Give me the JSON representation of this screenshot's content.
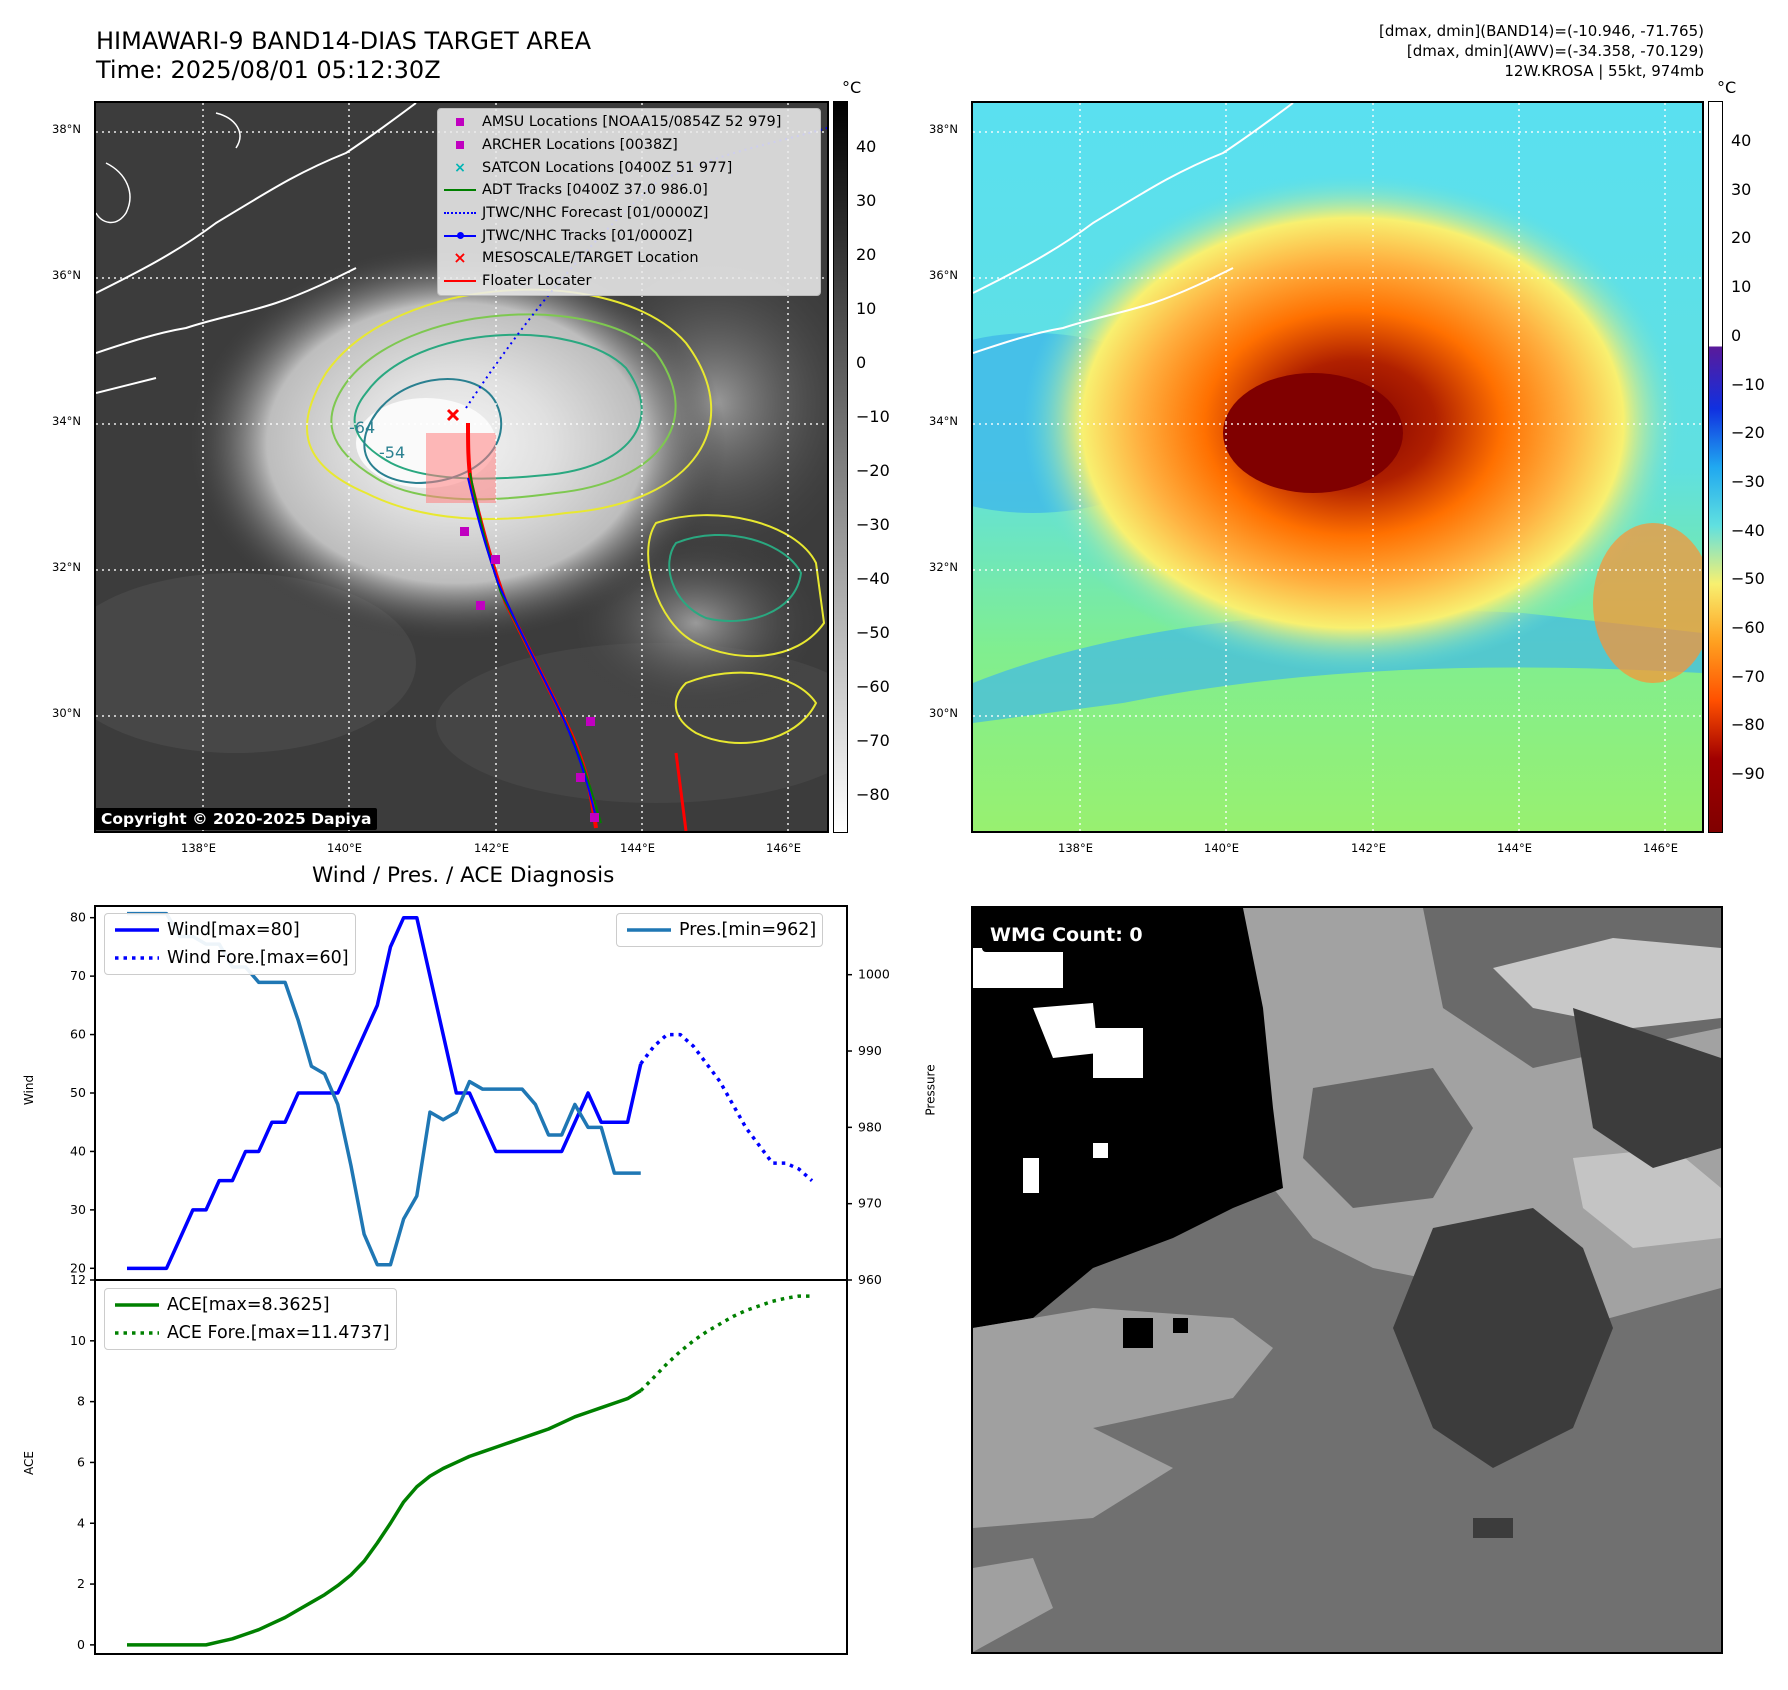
{
  "header": {
    "title_line1": "HIMAWARI-9 BAND14-DIAS TARGET AREA",
    "title_line2": "Time: 2025/08/01 05:12:30Z",
    "info_line1": "[dmax, dmin](BAND14)=(-10.946, -71.765)",
    "info_line2": "[dmax, dmin](AWV)=(-34.358, -70.129)",
    "info_line3": "12W.KROSA | 55kt, 974mb"
  },
  "map_axes": {
    "lon_ticks": [
      "138°E",
      "140°E",
      "142°E",
      "144°E",
      "146°E"
    ],
    "lat_ticks": [
      "38°N",
      "36°N",
      "34°N",
      "32°N",
      "30°N"
    ]
  },
  "ir_panel": {
    "copyright": "Copyright © 2020-2025 Dapiya",
    "contour_labels": [
      "-64",
      "-54"
    ],
    "legend": [
      {
        "label": "AMSU Locations [NOAA15/0854Z 52 979]",
        "symbol": "square",
        "color": "#c000c0"
      },
      {
        "label": "ARCHER Locations [0038Z]",
        "symbol": "square",
        "color": "#c000c0"
      },
      {
        "label": "SATCON Locations [0400Z 51 977]",
        "symbol": "x",
        "color": "#00b4b4"
      },
      {
        "label": "ADT Tracks [0400Z 37.0 986.0]",
        "symbol": "line",
        "color": "#008000"
      },
      {
        "label": "JTWC/NHC Forecast [01/0000Z]",
        "symbol": "dotted",
        "color": "#0000ff"
      },
      {
        "label": "JTWC/NHC Tracks [01/0000Z]",
        "symbol": "line-dot",
        "color": "#0000ff"
      },
      {
        "label": "MESOSCALE/TARGET Location",
        "symbol": "x",
        "color": "#ff0000"
      },
      {
        "label": "Floater Locater",
        "symbol": "line",
        "color": "#ff0000"
      }
    ],
    "colorbar_unit": "°C",
    "colorbar_ticks": [
      "40",
      "30",
      "20",
      "10",
      "0",
      "−10",
      "−20",
      "−30",
      "−40",
      "−50",
      "−60",
      "−70",
      "−80"
    ]
  },
  "wv_panel": {
    "colorbar_unit": "°C",
    "colorbar_ticks": [
      "40",
      "30",
      "20",
      "10",
      "0",
      "−10",
      "−20",
      "−30",
      "−40",
      "−50",
      "−60",
      "−70",
      "−80",
      "−90"
    ]
  },
  "wmg_panel": {
    "label": "WMG Count: 0"
  },
  "chart_data": [
    {
      "type": "line",
      "title": "Wind / Pres. / ACE Diagnosis",
      "ylabel": "Wind",
      "ylabel_right": "Pressure",
      "ylim": [
        18,
        82
      ],
      "ylim_right": [
        960,
        1009
      ],
      "yticks": [
        20,
        30,
        40,
        50,
        60,
        70,
        80
      ],
      "yticks_right": [
        960,
        970,
        980,
        990,
        1000
      ],
      "x": [
        0,
        1,
        2,
        3,
        4,
        5,
        6,
        7,
        8,
        9,
        10,
        11,
        12,
        13,
        14,
        15,
        16,
        17,
        18,
        19,
        20,
        21,
        22,
        23,
        24,
        25,
        26,
        27,
        28,
        29,
        30,
        31,
        32,
        33,
        34,
        35,
        36,
        37,
        38,
        39,
        40,
        41,
        42,
        43,
        44,
        45,
        46,
        47,
        48,
        49,
        50,
        51,
        52,
        53,
        54,
        55,
        56,
        57,
        58,
        59
      ],
      "series": [
        {
          "name": "Wind[max=80]",
          "color": "#0000ff",
          "style": "solid",
          "x": [
            0,
            1,
            2,
            3,
            4,
            5,
            6,
            7,
            8,
            9,
            10,
            11,
            12,
            13,
            14,
            15,
            16,
            17,
            18,
            19,
            20,
            21,
            22,
            23,
            24,
            25,
            26,
            27,
            28,
            29,
            30,
            31,
            32,
            33,
            34,
            35,
            36,
            37,
            38,
            39
          ],
          "values": [
            20,
            20,
            20,
            20,
            25,
            30,
            30,
            35,
            35,
            40,
            40,
            45,
            45,
            50,
            50,
            50,
            50,
            55,
            60,
            65,
            75,
            80,
            80,
            70,
            60,
            50,
            50,
            45,
            40,
            40,
            40,
            40,
            40,
            40,
            45,
            50,
            45,
            45,
            45,
            55
          ]
        },
        {
          "name": "Wind Fore.[max=60]",
          "color": "#0000ff",
          "style": "dotted",
          "x": [
            39,
            40,
            41,
            42,
            43,
            44,
            45,
            46,
            47,
            48,
            49,
            50,
            51,
            52
          ],
          "values": [
            55,
            58,
            60,
            60,
            58,
            55,
            52,
            48,
            44,
            41,
            38,
            38,
            37,
            35
          ]
        },
        {
          "name": "Pres.[min=962]",
          "color": "#1f77b4",
          "style": "solid",
          "axis": "right",
          "x": [
            0,
            1,
            2,
            3,
            4,
            5,
            6,
            7,
            8,
            9,
            10,
            11,
            12,
            13,
            14,
            15,
            16,
            17,
            18,
            19,
            20,
            21,
            22,
            23,
            24,
            25,
            26,
            27,
            28,
            29,
            30,
            31,
            32,
            33,
            34,
            35,
            36,
            37,
            38,
            39
          ],
          "values": [
            1008,
            1008,
            1008,
            1008,
            1005,
            1005,
            1004,
            1004,
            1001,
            1001,
            999,
            999,
            999,
            994,
            988,
            987,
            983,
            975,
            966,
            962,
            962,
            968,
            971,
            982,
            981,
            982,
            986,
            985,
            985,
            985,
            985,
            983,
            979,
            979,
            983,
            980,
            980,
            974,
            974,
            974
          ]
        }
      ]
    },
    {
      "type": "line",
      "ylabel": "ACE",
      "ylim": [
        -0.3,
        12
      ],
      "yticks": [
        0,
        2,
        4,
        6,
        8,
        10,
        12
      ],
      "series": [
        {
          "name": "ACE[max=8.3625]",
          "color": "#008000",
          "style": "solid",
          "x": [
            0,
            1,
            2,
            3,
            4,
            5,
            6,
            7,
            8,
            9,
            10,
            11,
            12,
            13,
            14,
            15,
            16,
            17,
            18,
            19,
            20,
            21,
            22,
            23,
            24,
            25,
            26,
            27,
            28,
            29,
            30,
            31,
            32,
            33,
            34,
            35,
            36,
            37,
            38,
            39
          ],
          "values": [
            0,
            0,
            0,
            0,
            0,
            0,
            0,
            0.1,
            0.2,
            0.35,
            0.5,
            0.7,
            0.9,
            1.15,
            1.4,
            1.65,
            1.95,
            2.3,
            2.75,
            3.35,
            4.0,
            4.7,
            5.2,
            5.55,
            5.8,
            6.0,
            6.2,
            6.35,
            6.5,
            6.65,
            6.8,
            6.95,
            7.1,
            7.3,
            7.5,
            7.65,
            7.8,
            7.95,
            8.1,
            8.36
          ]
        },
        {
          "name": "ACE Fore.[max=11.4737]",
          "color": "#008000",
          "style": "dotted",
          "x": [
            39,
            40,
            41,
            42,
            43,
            44,
            45,
            46,
            47,
            48,
            49,
            50,
            51,
            52
          ],
          "values": [
            8.36,
            8.8,
            9.25,
            9.65,
            10.0,
            10.3,
            10.55,
            10.8,
            11.0,
            11.15,
            11.3,
            11.4,
            11.47,
            11.47
          ]
        }
      ]
    }
  ]
}
